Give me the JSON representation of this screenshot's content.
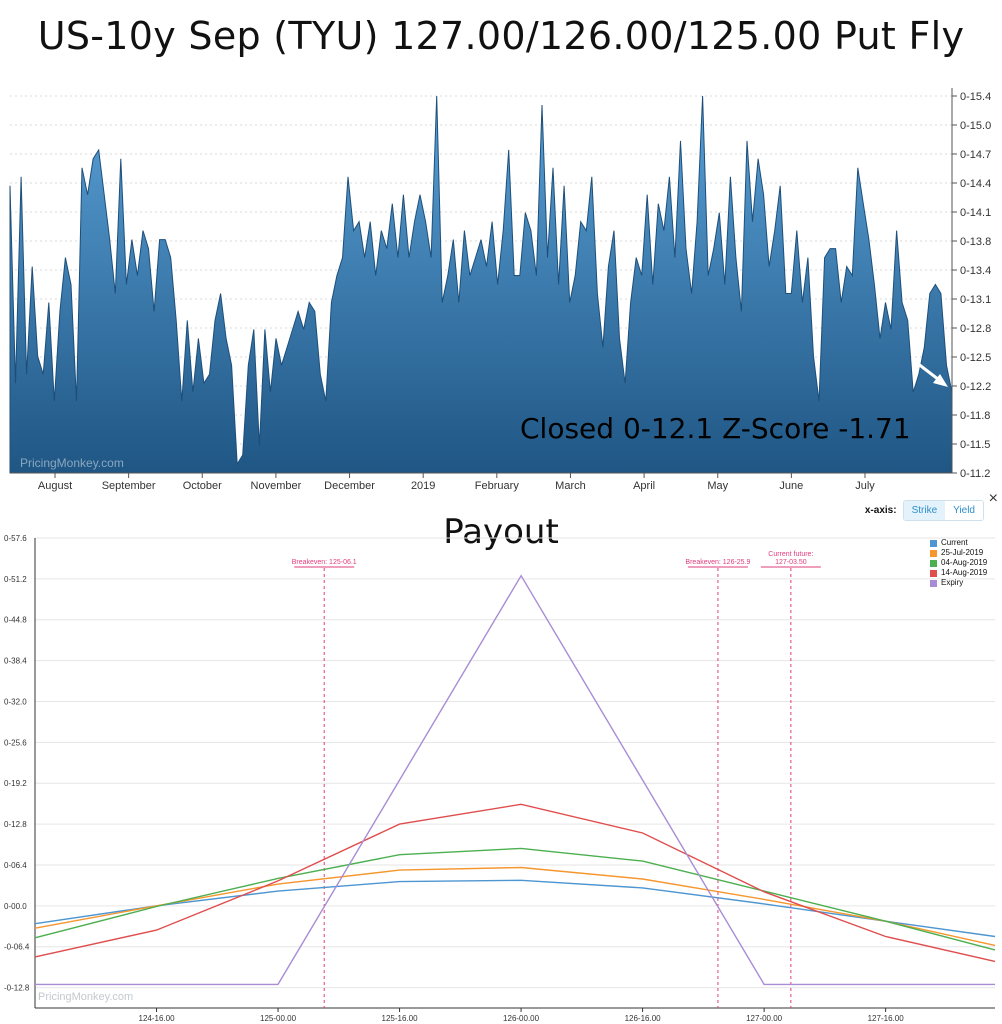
{
  "title": "US-10y Sep (TYU) 127.00/126.00/125.00 Put Fly",
  "top_chart": {
    "watermark": "PricingMonkey.com",
    "annotation": "Closed 0-12.1 Z-Score -1.71",
    "fill_color_top": "#5aa0d6",
    "fill_color_bottom": "#1f5684",
    "arrow_color": "#ffffff"
  },
  "payout": {
    "title": "Payout",
    "watermark": "PricingMonkey.com",
    "xaxis_label": "x-axis:",
    "toggle_strike": "Strike",
    "toggle_yield": "Yield",
    "close_symbol": "×",
    "breakeven1_label": "Breakeven: 125-06.1",
    "breakeven2_label": "Breakeven: 126-25.9",
    "current_future_line1": "Current future:",
    "current_future_line2": "127-03.50",
    "marker_color": "#e23c7e"
  },
  "chart_data": [
    {
      "type": "area",
      "title": "US-10y Sep (TYU) 127.00/126.00/125.00 Put Fly",
      "x_tick_labels": [
        "August",
        "September",
        "October",
        "November",
        "December",
        "2019",
        "February",
        "March",
        "April",
        "May",
        "June",
        "July"
      ],
      "y_tick_labels": [
        "0-15.4",
        "0-15.0",
        "0-14.7",
        "0-14.4",
        "0-14.1",
        "0-13.8",
        "0-13.4",
        "0-13.1",
        "0-12.8",
        "0-12.5",
        "0-12.2",
        "0-11.8",
        "0-11.5",
        "0-11.2"
      ],
      "ylim": [
        11.2,
        15.4
      ],
      "grid": true,
      "series": [
        {
          "values": [
            14.4,
            12.2,
            14.5,
            12.3,
            13.5,
            12.5,
            12.3,
            13.1,
            12.0,
            13.0,
            13.6,
            13.3,
            12.0,
            14.6,
            14.3,
            14.7,
            14.8,
            14.3,
            13.8,
            13.2,
            14.7,
            13.3,
            13.8,
            13.4,
            13.9,
            13.7,
            13.0,
            13.8,
            13.8,
            13.6,
            12.9,
            12.0,
            12.9,
            12.1,
            12.7,
            12.2,
            12.3,
            12.9,
            13.2,
            12.7,
            12.4,
            11.3,
            11.4,
            12.4,
            12.8,
            11.5,
            12.8,
            12.1,
            12.7,
            12.4,
            12.6,
            12.8,
            13.0,
            12.8,
            13.1,
            13.0,
            12.3,
            12.0,
            13.1,
            13.4,
            13.6,
            14.5,
            13.9,
            14.0,
            13.6,
            14.0,
            13.4,
            13.9,
            13.7,
            14.2,
            13.6,
            14.3,
            13.6,
            14.0,
            14.3,
            14.0,
            13.6,
            15.4,
            13.1,
            13.4,
            13.8,
            13.1,
            13.9,
            13.4,
            13.6,
            13.8,
            13.5,
            14.0,
            13.3,
            13.9,
            14.8,
            13.4,
            13.4,
            14.1,
            13.9,
            13.4,
            15.3,
            13.6,
            14.6,
            13.3,
            14.4,
            13.1,
            13.4,
            14.0,
            13.9,
            14.5,
            13.2,
            12.6,
            13.5,
            13.9,
            12.7,
            12.2,
            13.1,
            13.6,
            13.4,
            14.3,
            13.3,
            14.2,
            13.9,
            14.5,
            13.6,
            14.9,
            13.7,
            13.2,
            14.0,
            15.4,
            13.4,
            13.7,
            14.1,
            13.3,
            14.5,
            13.6,
            13.0,
            14.9,
            14.0,
            14.7,
            14.3,
            13.5,
            13.9,
            14.4,
            13.2,
            13.2,
            13.9,
            13.1,
            13.6,
            12.5,
            12.0,
            13.6,
            13.7,
            13.7,
            13.1,
            13.5,
            13.4,
            14.6,
            14.2,
            13.8,
            13.3,
            12.7,
            13.1,
            12.8,
            13.9,
            13.1,
            12.9,
            12.1,
            12.3,
            12.6,
            13.2,
            13.3,
            13.2,
            12.4,
            12.1
          ],
          "last_value": "0-12.1"
        }
      ]
    },
    {
      "type": "line",
      "title": "Payout",
      "x_tick_labels": [
        "124-16.00",
        "125-00.00",
        "125-16.00",
        "126-00.00",
        "126-16.00",
        "127-00.00",
        "127-16.00"
      ],
      "y_tick_labels": [
        "0-57.6",
        "0-51.2",
        "0-44.8",
        "0-38.4",
        "0-32.0",
        "0-25.6",
        "0-19.2",
        "0-12.8",
        "0-06.4",
        "0-00.0",
        "-0-06.4",
        "-0-12.8"
      ],
      "xlim": [
        124.0,
        127.95
      ],
      "ylim": [
        -16,
        57.6
      ],
      "legend_position": "top-right",
      "series": [
        {
          "name": "Current",
          "color": "#4d96d1",
          "x": [
            124.0,
            124.5,
            125.0,
            125.5,
            126.0,
            126.5,
            127.0,
            127.5,
            127.95
          ],
          "y": [
            -2.8,
            0.0,
            2.3,
            3.8,
            4.0,
            2.8,
            0.3,
            -2.4,
            -4.8
          ]
        },
        {
          "name": "25-Jul-2019",
          "color": "#f5962e",
          "x": [
            124.0,
            124.5,
            125.0,
            125.5,
            126.0,
            126.5,
            127.0,
            127.5,
            127.95
          ],
          "y": [
            -3.5,
            0.0,
            3.4,
            5.6,
            6.0,
            4.2,
            1.0,
            -2.4,
            -6.2
          ]
        },
        {
          "name": "04-Aug-2019",
          "color": "#4caf50",
          "x": [
            124.0,
            124.5,
            125.0,
            125.5,
            126.0,
            126.5,
            127.0,
            127.5,
            127.95
          ],
          "y": [
            -5.0,
            -0.1,
            4.3,
            8.0,
            9.0,
            7.0,
            2.3,
            -2.4,
            -6.9
          ]
        },
        {
          "name": "14-Aug-2019",
          "color": "#e04d4d",
          "x": [
            124.0,
            124.5,
            125.0,
            125.5,
            126.0,
            126.5,
            127.0,
            127.5,
            127.95
          ],
          "y": [
            -8.0,
            -3.8,
            3.9,
            12.8,
            15.9,
            11.4,
            2.2,
            -4.8,
            -8.7
          ]
        },
        {
          "name": "Expiry",
          "color": "#a98cd6",
          "x": [
            124.0,
            125.0,
            126.0,
            127.0,
            127.95
          ],
          "y": [
            -12.3,
            -12.3,
            51.7,
            -12.3,
            -12.3
          ]
        }
      ],
      "markers": [
        {
          "label": "Breakeven: 125-06.1",
          "x": 125.19
        },
        {
          "label": "Breakeven: 126-25.9",
          "x": 126.81
        },
        {
          "label": "Current future: 127-03.50",
          "x": 127.11
        }
      ]
    }
  ]
}
